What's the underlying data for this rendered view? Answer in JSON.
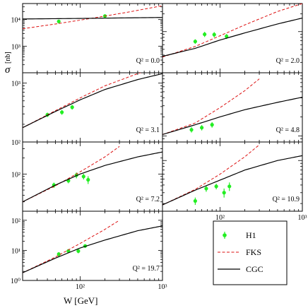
{
  "figure": {
    "y_label": "σ",
    "y_unit": "[nb]",
    "x_label": "W [GeV]"
  },
  "legend": {
    "entries": [
      {
        "name": "H1",
        "style": "marker",
        "color": "#22ee22"
      },
      {
        "name": "FKS",
        "style": "dashed",
        "color": "#dd1111"
      },
      {
        "name": "CGC",
        "style": "solid",
        "color": "#000000"
      }
    ]
  },
  "colors": {
    "h1": "#22ee22",
    "fks": "#dd1111",
    "cgc": "#000000",
    "frame": "#000000"
  },
  "chart_data": [
    {
      "type": "line",
      "panel_label": "Q² = 0.0",
      "q2": "0.0",
      "x_scale": "log",
      "y_scale": "log",
      "xlim": [
        20,
        1000
      ],
      "ylim": [
        100,
        40000
      ],
      "y_ticks": [
        "10³",
        "10⁴"
      ],
      "y_tick_values": [
        1000,
        10000
      ],
      "x_ticks": [],
      "x_tick_values": [],
      "series": [
        {
          "name": "H1",
          "kind": "points",
          "x": [
            55,
            200
          ],
          "y": [
            8500,
            13500
          ],
          "err": [
            1400,
            2200
          ]
        },
        {
          "name": "FKS",
          "kind": "dashed",
          "x": [
            20,
            50,
            100,
            200,
            400,
            700,
            1000
          ],
          "y": [
            4500,
            6800,
            9500,
            13500,
            19500,
            27000,
            33000
          ]
        },
        {
          "name": "CGC",
          "kind": "solid",
          "x": [
            20,
            50,
            100,
            200,
            500,
            1000
          ],
          "y": [
            10500,
            10800,
            11000,
            11300,
            11700,
            12000
          ]
        }
      ]
    },
    {
      "type": "line",
      "panel_label": "Q² = 2.0",
      "q2": "2.0",
      "x_scale": "log",
      "y_scale": "log",
      "xlim": [
        20,
        1000
      ],
      "ylim": [
        200,
        3000
      ],
      "y_ticks": [],
      "y_tick_values": [],
      "x_ticks": [],
      "x_tick_values": [],
      "series": [
        {
          "name": "H1",
          "kind": "points",
          "x": [
            50,
            65,
            85,
            120
          ],
          "y": [
            680,
            900,
            890,
            830
          ],
          "err": [
            60,
            90,
            90,
            80
          ]
        },
        {
          "name": "FKS",
          "kind": "dashed",
          "x": [
            20,
            50,
            100,
            200,
            500,
            1000
          ],
          "y": [
            370,
            560,
            850,
            1300,
            2200,
            3000
          ]
        },
        {
          "name": "CGC",
          "kind": "solid",
          "x": [
            20,
            50,
            100,
            200,
            500,
            1000
          ],
          "y": [
            380,
            520,
            720,
            950,
            1350,
            1700
          ]
        }
      ]
    },
    {
      "type": "line",
      "panel_label": "Q² = 3.1",
      "q2": "3.1",
      "x_scale": "log",
      "y_scale": "log",
      "xlim": [
        20,
        1000
      ],
      "ylim": [
        100,
        1500
      ],
      "y_ticks": [
        "10²",
        "10³"
      ],
      "y_tick_values": [
        100,
        1000
      ],
      "x_ticks": [],
      "x_tick_values": [],
      "series": [
        {
          "name": "H1",
          "kind": "points",
          "x": [
            40,
            60,
            80
          ],
          "y": [
            290,
            320,
            390
          ],
          "err": [
            25,
            30,
            35
          ]
        },
        {
          "name": "FKS",
          "kind": "dashed",
          "x": [
            20,
            50,
            100,
            200,
            500,
            1000
          ],
          "y": [
            175,
            340,
            560,
            900,
            1450,
            2000
          ]
        },
        {
          "name": "CGC",
          "kind": "solid",
          "x": [
            20,
            50,
            100,
            200,
            500,
            1000
          ],
          "y": [
            175,
            330,
            520,
            780,
            1150,
            1450
          ]
        }
      ]
    },
    {
      "type": "line",
      "panel_label": "Q² = 4.8",
      "q2": "4.8",
      "x_scale": "log",
      "y_scale": "log",
      "xlim": [
        20,
        1000
      ],
      "ylim": [
        80,
        1000
      ],
      "y_ticks": [],
      "y_tick_values": [],
      "x_ticks": [],
      "x_tick_values": [],
      "series": [
        {
          "name": "H1",
          "kind": "points",
          "x": [
            45,
            60,
            80
          ],
          "y": [
            125,
            135,
            150
          ],
          "err": [
            12,
            13,
            15
          ]
        },
        {
          "name": "FKS",
          "kind": "dashed",
          "x": [
            20,
            50,
            100,
            200,
            300
          ],
          "y": [
            105,
            160,
            280,
            520,
            800
          ]
        },
        {
          "name": "CGC",
          "kind": "solid",
          "x": [
            20,
            50,
            100,
            200,
            500,
            1000
          ],
          "y": [
            105,
            150,
            200,
            260,
            340,
            410
          ]
        }
      ]
    },
    {
      "type": "line",
      "panel_label": "Q² = 7.2",
      "q2": "7.2",
      "x_scale": "log",
      "y_scale": "log",
      "xlim": [
        20,
        1000
      ],
      "ylim": [
        20,
        400
      ],
      "y_ticks": [
        "10²"
      ],
      "y_tick_values": [
        100
      ],
      "x_ticks": [],
      "x_tick_values": [],
      "series": [
        {
          "name": "H1",
          "kind": "points",
          "x": [
            48,
            72,
            90,
            110,
            125
          ],
          "y": [
            62,
            75,
            95,
            90,
            78
          ],
          "err": [
            7,
            8,
            12,
            11,
            13
          ]
        },
        {
          "name": "FKS",
          "kind": "dashed",
          "x": [
            20,
            50,
            100,
            200,
            300
          ],
          "y": [
            30,
            60,
            110,
            210,
            330
          ]
        },
        {
          "name": "CGC",
          "kind": "solid",
          "x": [
            20,
            50,
            100,
            200,
            500,
            1000
          ],
          "y": [
            30,
            62,
            100,
            145,
            210,
            260
          ]
        }
      ]
    },
    {
      "type": "line",
      "panel_label": "Q² = 10.9",
      "q2": "10.9",
      "x_scale": "log",
      "y_scale": "log",
      "xlim": [
        20,
        1000
      ],
      "ylim": [
        15,
        200
      ],
      "y_ticks": [],
      "y_tick_values": [],
      "x_ticks": [
        "10²",
        "10³"
      ],
      "x_tick_values": [
        100,
        1000
      ],
      "series": [
        {
          "name": "H1",
          "kind": "points",
          "x": [
            50,
            68,
            90,
            112,
            130
          ],
          "y": [
            22,
            35,
            38,
            30,
            38
          ],
          "err": [
            3,
            4,
            4,
            5,
            6
          ]
        },
        {
          "name": "FKS",
          "kind": "dashed",
          "x": [
            20,
            50,
            100,
            200,
            300
          ],
          "y": [
            19,
            34,
            60,
            115,
            180
          ]
        },
        {
          "name": "CGC",
          "kind": "solid",
          "x": [
            20,
            50,
            100,
            200,
            500,
            1000
          ],
          "y": [
            19,
            33,
            48,
            70,
            100,
            120
          ]
        }
      ]
    },
    {
      "type": "line",
      "panel_label": "Q² = 19.7",
      "q2": "19.7",
      "x_scale": "log",
      "y_scale": "log",
      "xlim": [
        20,
        1000
      ],
      "ylim": [
        1,
        200
      ],
      "y_ticks": [
        "10⁰",
        "10¹",
        "10²"
      ],
      "y_tick_values": [
        1,
        10,
        100
      ],
      "x_ticks": [
        "10²",
        "10³"
      ],
      "x_tick_values": [
        100,
        1000
      ],
      "series": [
        {
          "name": "H1",
          "kind": "points",
          "x": [
            55,
            72,
            95,
            115
          ],
          "y": [
            7.5,
            9.5,
            9.5,
            14
          ],
          "err": [
            1.2,
            1.5,
            1.5,
            2
          ]
        },
        {
          "name": "FKS",
          "kind": "dashed",
          "x": [
            20,
            50,
            100,
            200,
            300
          ],
          "y": [
            1.8,
            6,
            17,
            50,
            100
          ]
        },
        {
          "name": "CGC",
          "kind": "solid",
          "x": [
            20,
            50,
            100,
            200,
            500,
            1000
          ],
          "y": [
            1.8,
            5.5,
            12,
            22,
            45,
            65
          ]
        }
      ]
    }
  ]
}
